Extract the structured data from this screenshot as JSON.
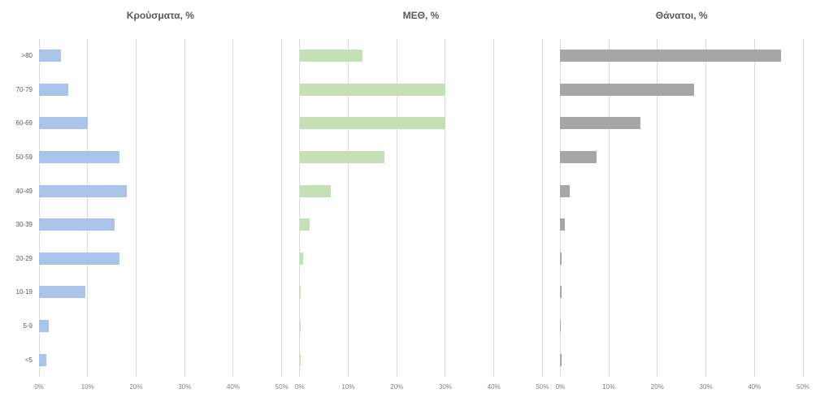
{
  "figure_title": "",
  "chart_data": [
    {
      "type": "bar",
      "orientation": "horizontal",
      "title": "Κρούσματα, %",
      "categories": [
        ">80",
        "70-79",
        "60-69",
        "50-59",
        "40-49",
        "30-39",
        "20-29",
        "10-19",
        "5-9",
        "<5"
      ],
      "values": [
        4.5,
        6,
        10,
        16.5,
        18,
        15.5,
        16.5,
        9.5,
        2,
        1.5
      ],
      "color": "#a9c4e8",
      "xlim": [
        0,
        50
      ],
      "xtick_step": 10,
      "xtick_labels": [
        "0%",
        "10%",
        "20%",
        "30%",
        "40%",
        "50%"
      ],
      "grid": true,
      "legend": false
    },
    {
      "type": "bar",
      "orientation": "horizontal",
      "title": "ΜΕΘ, %",
      "categories": [
        ">80",
        "70-79",
        "60-69",
        "50-59",
        "40-49",
        "30-39",
        "20-29",
        "10-19",
        "5-9",
        "<5"
      ],
      "values": [
        13,
        30,
        30,
        17.5,
        6.5,
        2,
        0.7,
        0.3,
        0.1,
        0.1
      ],
      "color": "#c5e0b4",
      "xlim": [
        0,
        50
      ],
      "xtick_step": 10,
      "xtick_labels": [
        "0%",
        "10%",
        "20%",
        "30%",
        "40%",
        "50%"
      ],
      "grid": true,
      "legend": false
    },
    {
      "type": "bar",
      "orientation": "horizontal",
      "title": "Θάνατοι, %",
      "categories": [
        ">80",
        "70-79",
        "60-69",
        "50-59",
        "40-49",
        "30-39",
        "20-29",
        "10-19",
        "5-9",
        "<5"
      ],
      "values": [
        45.5,
        27.5,
        16.5,
        7.5,
        2,
        1,
        0.2,
        0.2,
        0.1,
        0.3
      ],
      "color": "#a6a6a6",
      "xlim": [
        0,
        50
      ],
      "xtick_step": 10,
      "xtick_labels": [
        "0%",
        "10%",
        "20%",
        "30%",
        "40%",
        "50%"
      ],
      "grid": true,
      "legend": false
    }
  ]
}
